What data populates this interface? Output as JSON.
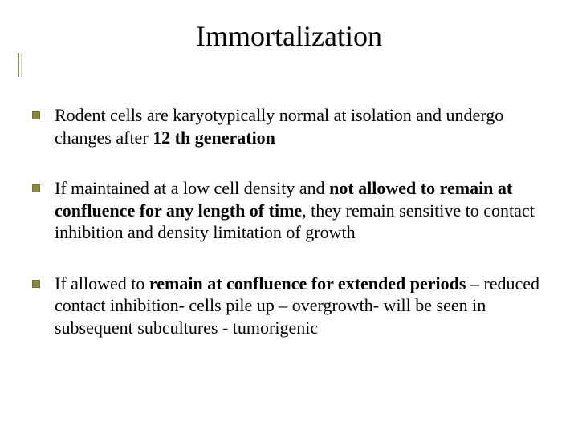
{
  "slide": {
    "title": "Immortalization",
    "bullets": [
      {
        "segments": [
          {
            "text": "Rodent cells are karyotypically normal at isolation and undergo changes after ",
            "bold": false
          },
          {
            "text": "12 th generation",
            "bold": true
          }
        ]
      },
      {
        "segments": [
          {
            "text": "If maintained at a low cell density and ",
            "bold": false
          },
          {
            "text": "not allowed to remain at confluence for any length of time",
            "bold": true
          },
          {
            "text": ", they remain sensitive to contact inhibition and density limitation of growth",
            "bold": false
          }
        ]
      },
      {
        "segments": [
          {
            "text": "If allowed to ",
            "bold": false
          },
          {
            "text": "remain at confluence for extended periods",
            "bold": true
          },
          {
            "text": " – reduced contact inhibition- cells pile up – overgrowth- will be seen in subsequent subcultures - tumorigenic",
            "bold": false
          }
        ]
      }
    ],
    "colors": {
      "frame": "#8b8b57",
      "frame_shadow": "#d9d9c8",
      "bullet_fill": "#8a8a3a",
      "bullet_border": "#6f6f2f",
      "background": "#ffffff",
      "text": "#000000"
    },
    "typography": {
      "title_fontsize": 36,
      "body_fontsize": 22,
      "font_family": "Times New Roman"
    }
  }
}
